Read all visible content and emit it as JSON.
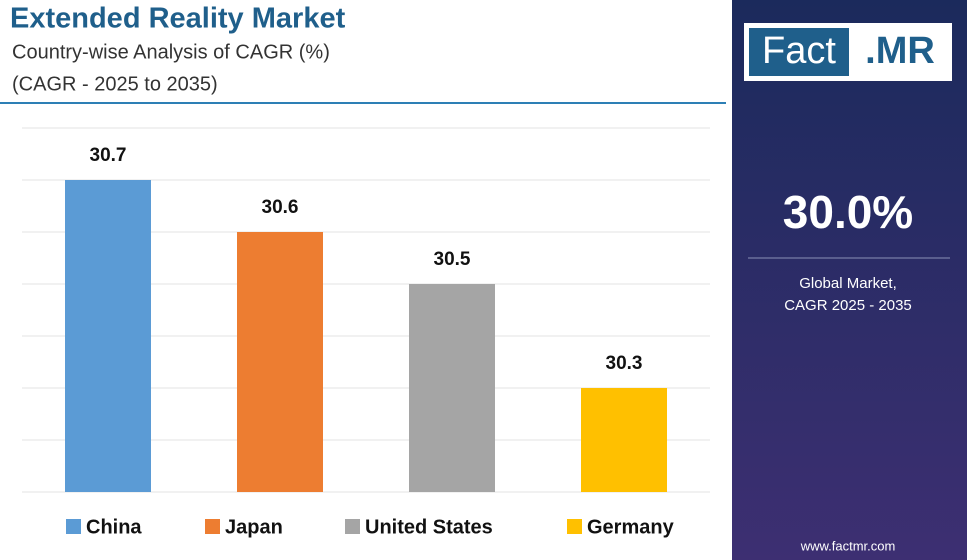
{
  "chart_data": {
    "type": "bar",
    "title": "Extended Reality Market",
    "subtitle": "Country-wise Analysis of CAGR (%)",
    "subtitle2": "(CAGR - 2025 to 2035)",
    "categories": [
      "China",
      "Japan",
      "United States",
      "Germany"
    ],
    "values": [
      30.7,
      30.6,
      30.5,
      30.3
    ],
    "colors": [
      "#5b9bd5",
      "#ed7d31",
      "#a5a5a5",
      "#ffc000"
    ],
    "ylim": [
      30.1,
      30.8
    ],
    "grid": true
  },
  "side_panel": {
    "logo_left": "Fact",
    "logo_right": ".MR",
    "headline": "30.0%",
    "caption_line1": "Global Market,",
    "caption_line2": "CAGR 2025 - 2035",
    "url": "www.factmr.com"
  }
}
